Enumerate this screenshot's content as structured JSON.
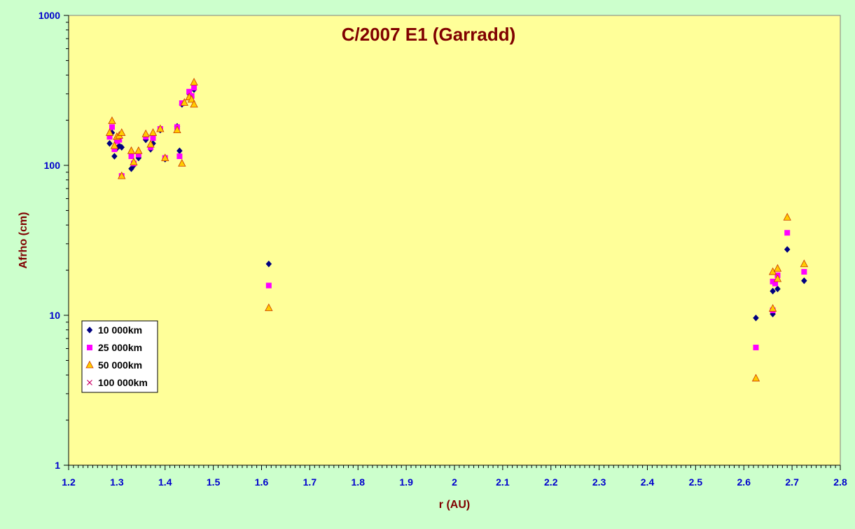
{
  "chart_data": {
    "type": "scatter",
    "title": "C/2007 E1 (Garradd)",
    "xlabel": "r (AU)",
    "ylabel": "Afrho (cm)",
    "xlim": [
      1.2,
      2.8
    ],
    "ylim": [
      1,
      1000
    ],
    "y_scale": "log",
    "x_ticks": [
      "1.2",
      "1.3",
      "1.4",
      "1.5",
      "1.6",
      "1.7",
      "1.8",
      "1.9",
      "2",
      "2.1",
      "2.2",
      "2.3",
      "2.4",
      "2.5",
      "2.6",
      "2.7",
      "2.8"
    ],
    "y_ticks": [
      "1",
      "10",
      "100",
      "1000"
    ],
    "grid": false,
    "legend_position": "bottom-left",
    "plot_background": "#ffff99",
    "figure_background": "#ccffcc",
    "series": [
      {
        "name": "10 000km",
        "marker": "diamond",
        "color": "#000080",
        "points": [
          [
            1.285,
            140
          ],
          [
            1.29,
            165
          ],
          [
            1.295,
            115
          ],
          [
            1.3,
            130
          ],
          [
            1.305,
            135
          ],
          [
            1.31,
            132
          ],
          [
            1.33,
            95
          ],
          [
            1.335,
            100
          ],
          [
            1.345,
            112
          ],
          [
            1.36,
            148
          ],
          [
            1.37,
            128
          ],
          [
            1.375,
            140
          ],
          [
            1.39,
            172
          ],
          [
            1.4,
            110
          ],
          [
            1.425,
            182
          ],
          [
            1.43,
            125
          ],
          [
            1.435,
            255
          ],
          [
            1.45,
            300
          ],
          [
            1.455,
            285
          ],
          [
            1.46,
            320
          ],
          [
            1.615,
            22
          ],
          [
            2.625,
            9.6
          ],
          [
            2.66,
            10.2
          ],
          [
            2.66,
            14.5
          ],
          [
            2.67,
            15
          ],
          [
            2.69,
            27.5
          ],
          [
            2.725,
            17
          ]
        ]
      },
      {
        "name": "25 000km",
        "marker": "square",
        "color": "#ff00ff",
        "points": [
          [
            1.285,
            155
          ],
          [
            1.29,
            180
          ],
          [
            1.295,
            128
          ],
          [
            1.3,
            145
          ],
          [
            1.305,
            148
          ],
          [
            1.31,
            85
          ],
          [
            1.33,
            115
          ],
          [
            1.335,
            103
          ],
          [
            1.345,
            118
          ],
          [
            1.36,
            155
          ],
          [
            1.37,
            132
          ],
          [
            1.375,
            152
          ],
          [
            1.39,
            175
          ],
          [
            1.4,
            112
          ],
          [
            1.425,
            180
          ],
          [
            1.43,
            115
          ],
          [
            1.435,
            260
          ],
          [
            1.45,
            310
          ],
          [
            1.455,
            290
          ],
          [
            1.46,
            330
          ],
          [
            1.615,
            15.8
          ],
          [
            2.625,
            6.1
          ],
          [
            2.66,
            10.8
          ],
          [
            2.66,
            16.8
          ],
          [
            2.665,
            16.3
          ],
          [
            2.67,
            18.5
          ],
          [
            2.69,
            35.5
          ],
          [
            2.725,
            19.5
          ]
        ]
      },
      {
        "name": "50 000km",
        "marker": "triangle",
        "color": "#ffcc00",
        "points": [
          [
            1.285,
            165
          ],
          [
            1.29,
            198
          ],
          [
            1.295,
            135
          ],
          [
            1.3,
            155
          ],
          [
            1.305,
            158
          ],
          [
            1.31,
            165
          ],
          [
            1.31,
            85
          ],
          [
            1.33,
            125
          ],
          [
            1.335,
            105
          ],
          [
            1.345,
            125
          ],
          [
            1.36,
            162
          ],
          [
            1.37,
            138
          ],
          [
            1.375,
            165
          ],
          [
            1.39,
            175
          ],
          [
            1.4,
            112
          ],
          [
            1.425,
            172
          ],
          [
            1.435,
            103
          ],
          [
            1.44,
            262
          ],
          [
            1.45,
            285
          ],
          [
            1.455,
            275
          ],
          [
            1.46,
            358
          ],
          [
            1.46,
            255
          ],
          [
            1.615,
            11.2
          ],
          [
            2.625,
            3.8
          ],
          [
            2.66,
            11.1
          ],
          [
            2.66,
            19.5
          ],
          [
            2.67,
            17.5
          ],
          [
            2.67,
            20.5
          ],
          [
            2.69,
            45
          ],
          [
            2.725,
            22
          ]
        ]
      },
      {
        "name": "100 000km",
        "marker": "x",
        "color": "#cc0066",
        "points": []
      }
    ]
  }
}
